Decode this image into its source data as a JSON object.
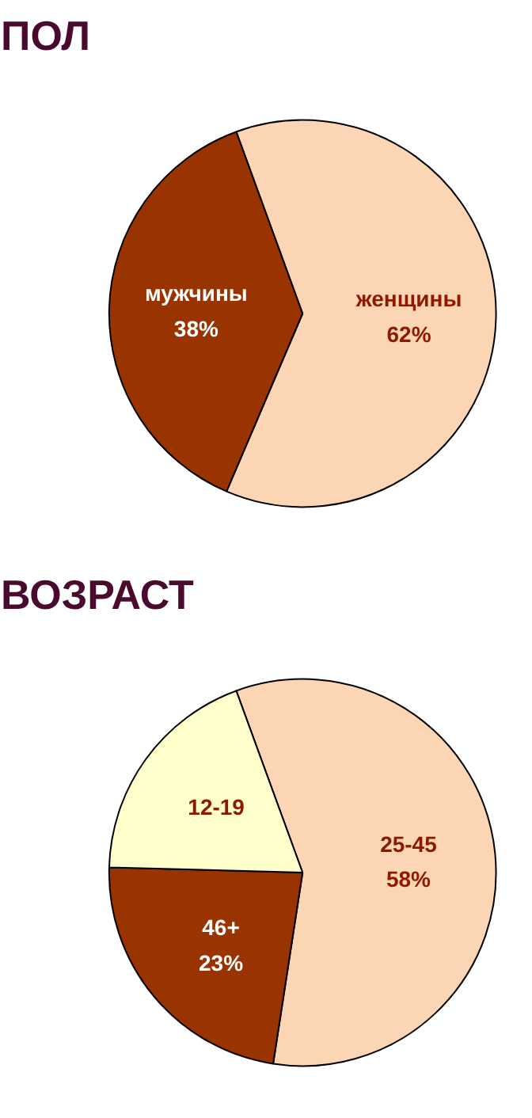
{
  "chart_data": [
    {
      "type": "pie",
      "title": "ПОЛ",
      "categories": [
        "женщины",
        "мужчины"
      ],
      "values": [
        62,
        38
      ],
      "colors": [
        "#fcd5b4",
        "#993300"
      ],
      "value_labels": [
        "62%",
        "38%"
      ]
    },
    {
      "type": "pie",
      "title": "ВОЗРАСТ",
      "categories": [
        "25-45",
        "46+",
        "12-19"
      ],
      "values": [
        58,
        23,
        19
      ],
      "colors": [
        "#fcd5b4",
        "#993300",
        "#ffffcc"
      ],
      "value_labels": [
        "58%",
        "23%",
        null
      ]
    }
  ]
}
